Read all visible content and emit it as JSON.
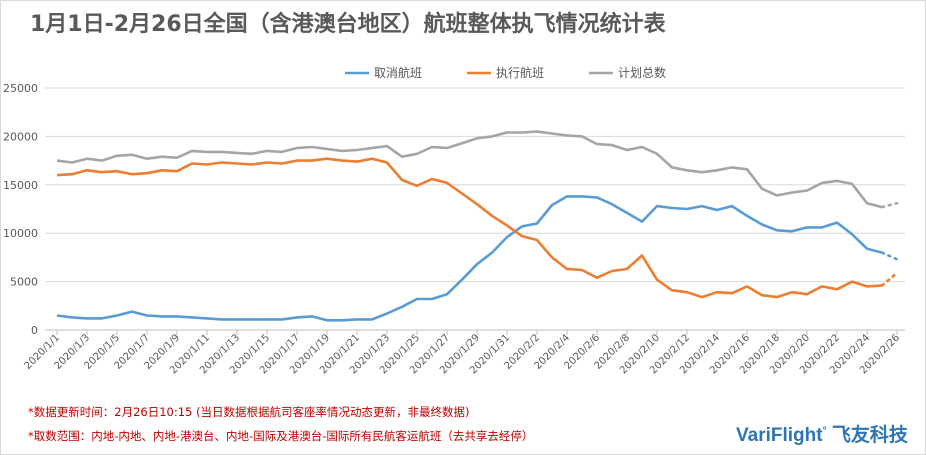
{
  "title": "1月1日-2月26日全国（含港澳台地区）航班整体执飞情况统计表",
  "chart_data": {
    "type": "line",
    "title": "1月1日-2月26日全国（含港澳台地区）航班整体执飞情况统计表",
    "legend_position": "top",
    "grid": true,
    "ylim": [
      0,
      25000
    ],
    "y_ticks": [
      "0",
      "5000",
      "10000",
      "15000",
      "20000",
      "25000"
    ],
    "x": [
      "2020/1/1",
      "2020/1/2",
      "2020/1/3",
      "2020/1/4",
      "2020/1/5",
      "2020/1/6",
      "2020/1/7",
      "2020/1/8",
      "2020/1/9",
      "2020/1/10",
      "2020/1/11",
      "2020/1/12",
      "2020/1/13",
      "2020/1/14",
      "2020/1/15",
      "2020/1/16",
      "2020/1/17",
      "2020/1/18",
      "2020/1/19",
      "2020/1/20",
      "2020/1/21",
      "2020/1/22",
      "2020/1/23",
      "2020/1/24",
      "2020/1/25",
      "2020/1/26",
      "2020/1/27",
      "2020/1/28",
      "2020/1/29",
      "2020/1/30",
      "2020/1/31",
      "2020/2/1",
      "2020/2/2",
      "2020/2/3",
      "2020/2/4",
      "2020/2/5",
      "2020/2/6",
      "2020/2/7",
      "2020/2/8",
      "2020/2/9",
      "2020/2/10",
      "2020/2/11",
      "2020/2/12",
      "2020/2/13",
      "2020/2/14",
      "2020/2/15",
      "2020/2/16",
      "2020/2/17",
      "2020/2/18",
      "2020/2/19",
      "2020/2/20",
      "2020/2/21",
      "2020/2/22",
      "2020/2/23",
      "2020/2/24",
      "2020/2/25",
      "2020/2/26"
    ],
    "x_tick_labels": [
      "2020/1/1",
      "2020/1/3",
      "2020/1/5",
      "2020/1/7",
      "2020/1/9",
      "2020/1/11",
      "2020/1/13",
      "2020/1/15",
      "2020/1/17",
      "2020/1/19",
      "2020/1/21",
      "2020/1/23",
      "2020/1/25",
      "2020/1/27",
      "2020/1/29",
      "2020/1/31",
      "2020/2/2",
      "2020/2/4",
      "2020/2/6",
      "2020/2/8",
      "2020/2/10",
      "2020/2/12",
      "2020/2/14",
      "2020/2/16",
      "2020/2/18",
      "2020/2/20",
      "2020/2/22",
      "2020/2/24",
      "2020/2/26"
    ],
    "last_point_dotted": true,
    "series": [
      {
        "name": "取消航班",
        "color": "#5b9bd5",
        "values": [
          1500,
          1300,
          1200,
          1200,
          1500,
          1900,
          1500,
          1400,
          1400,
          1300,
          1200,
          1100,
          1100,
          1100,
          1100,
          1100,
          1300,
          1400,
          1000,
          1000,
          1100,
          1100,
          1700,
          2400,
          3200,
          3200,
          3700,
          5200,
          6800,
          8000,
          9600,
          10700,
          11000,
          12900,
          13800,
          13800,
          13700,
          13000,
          12100,
          11200,
          12800,
          12600,
          12500,
          12800,
          12400,
          12800,
          11800,
          10900,
          10300,
          10200,
          10600,
          10600,
          11100,
          9900,
          8400,
          8000,
          7300
        ]
      },
      {
        "name": "执行航班",
        "color": "#ed7d31",
        "values": [
          16000,
          16100,
          16500,
          16300,
          16400,
          16100,
          16200,
          16500,
          16400,
          17200,
          17100,
          17300,
          17200,
          17100,
          17300,
          17200,
          17500,
          17500,
          17700,
          17500,
          17400,
          17700,
          17300,
          15500,
          14900,
          15600,
          15200,
          14100,
          13000,
          11800,
          10800,
          9700,
          9300,
          7500,
          6300,
          6200,
          5400,
          6100,
          6300,
          7700,
          5200,
          4100,
          3900,
          3400,
          3900,
          3800,
          4500,
          3600,
          3400,
          3900,
          3700,
          4500,
          4200,
          5000,
          4500,
          4600,
          5900
        ]
      },
      {
        "name": "计划总数",
        "color": "#a5a5a5",
        "values": [
          17500,
          17300,
          17700,
          17500,
          18000,
          18100,
          17700,
          17900,
          17800,
          18500,
          18400,
          18400,
          18300,
          18200,
          18500,
          18400,
          18800,
          18900,
          18700,
          18500,
          18600,
          18800,
          19000,
          17900,
          18200,
          18900,
          18800,
          19300,
          19800,
          20000,
          20400,
          20400,
          20500,
          20300,
          20100,
          20000,
          19200,
          19100,
          18600,
          18900,
          18200,
          16800,
          16500,
          16300,
          16500,
          16800,
          16600,
          14600,
          13900,
          14200,
          14400,
          15200,
          15400,
          15100,
          13100,
          12700,
          13100
        ]
      }
    ]
  },
  "notes": {
    "update_time": "*数据更新时间：2月26日10:15 (当日数据根据航司客座率情况动态更新，非最终数据)",
    "scope": "*取数范围：内地-内地、内地-港澳台、内地-国际及港澳台-国际所有民航客运航班（去共享去经停）"
  },
  "logo": {
    "en": "VariFlight",
    "cn": "飞友科技"
  }
}
